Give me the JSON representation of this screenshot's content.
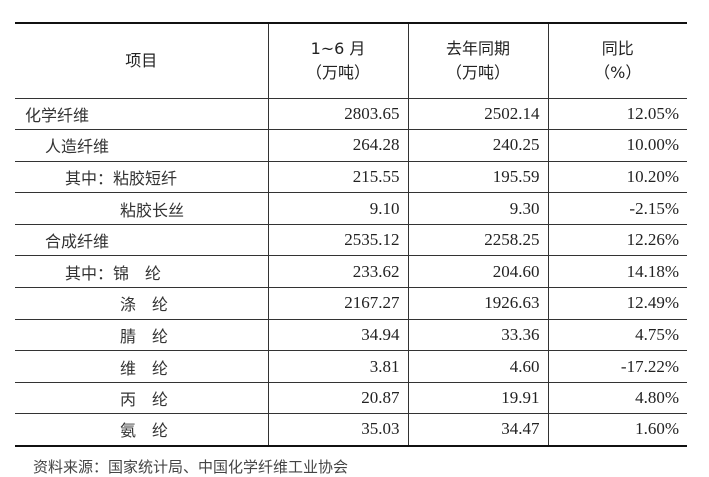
{
  "header": {
    "item": "项目",
    "col1": [
      "1~6 月",
      "（万吨）"
    ],
    "col2": [
      "去年同期",
      "（万吨）"
    ],
    "col3": [
      "同比",
      "（%）"
    ]
  },
  "rows": [
    {
      "name": "化学纤维",
      "level": 0,
      "current": "2803.65",
      "last_year": "2502.14",
      "yoy": "12.05%"
    },
    {
      "name": "人造纤维",
      "level": 1,
      "current": "264.28",
      "last_year": "240.25",
      "yoy": "10.00%"
    },
    {
      "name": "其中：粘胶短纤",
      "level": 2,
      "current": "215.55",
      "last_year": "195.59",
      "yoy": "10.20%"
    },
    {
      "name": "粘胶长丝",
      "level": 3,
      "current": "9.10",
      "last_year": "9.30",
      "yoy": "-2.15%"
    },
    {
      "name": "合成纤维",
      "level": 1,
      "current": "2535.12",
      "last_year": "2258.25",
      "yoy": "12.26%"
    },
    {
      "name": "其中：锦　纶",
      "level": 2,
      "current": "233.62",
      "last_year": "204.60",
      "yoy": "14.18%"
    },
    {
      "name": "涤　纶",
      "level": 3,
      "current": "2167.27",
      "last_year": "1926.63",
      "yoy": "12.49%"
    },
    {
      "name": "腈　纶",
      "level": 3,
      "current": "34.94",
      "last_year": "33.36",
      "yoy": "4.75%"
    },
    {
      "name": "维　纶",
      "level": 3,
      "current": "3.81",
      "last_year": "4.60",
      "yoy": "-17.22%"
    },
    {
      "name": "丙　纶",
      "level": 3,
      "current": "20.87",
      "last_year": "19.91",
      "yoy": "4.80%"
    },
    {
      "name": "氨　纶",
      "level": 3,
      "current": "35.03",
      "last_year": "34.47",
      "yoy": "1.60%"
    }
  ],
  "source": "资料来源：国家统计局、中国化学纤维工业协会"
}
